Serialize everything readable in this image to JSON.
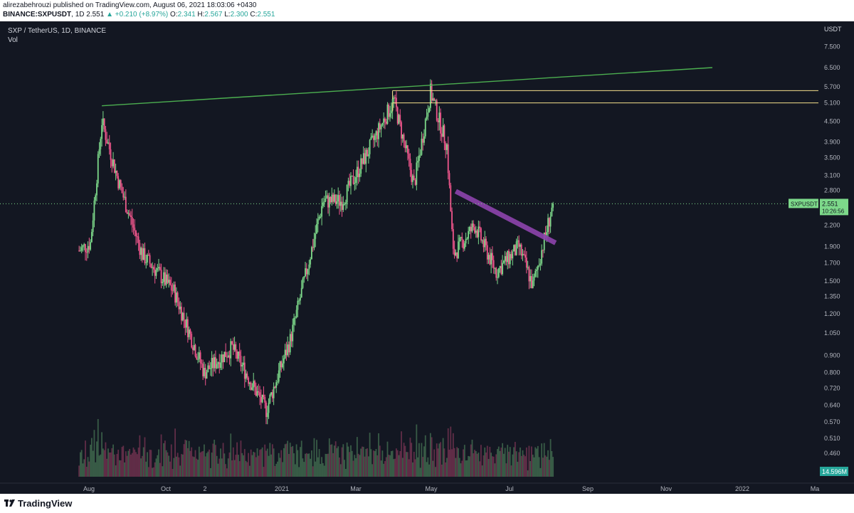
{
  "header": {
    "publisher_line": "alirezabehrouzi published on TradingView.com, August 06, 2021 18:03:06 +0430",
    "symbol": "BINANCE:SXPUSDT",
    "timeframe": "1D",
    "last": "2.551",
    "change": "▲ +0.210 (+8.97%)",
    "o_label": "O:",
    "o_value": "2.341",
    "h_label": "H:",
    "h_value": "2.567",
    "l_label": "L:",
    "l_value": "2.300",
    "c_label": "C:",
    "c_value": "2.551"
  },
  "legend": {
    "series": "SXP / TetherUS, 1D, BINANCE",
    "volume": "Vol"
  },
  "footer": {
    "brand": "TradingView"
  },
  "colors": {
    "background": "#131722",
    "bull": "#7dd98a",
    "bear": "#f0568c",
    "trendline": "#4caf50",
    "resistance": "#f5e08c",
    "descending_channel": "#8e44ad",
    "price_badge": "#7dd98a"
  },
  "chart_data": {
    "type": "candlestick",
    "symbol": "SXPUSDT",
    "currency_label": "USDT",
    "y_scale": "log",
    "y_ticks": [
      "7.500",
      "6.500",
      "5.700",
      "5.100",
      "4.500",
      "3.900",
      "3.500",
      "3.100",
      "2.800",
      "2.551",
      "2.200",
      "1.900",
      "1.700",
      "1.500",
      "1.350",
      "1.200",
      "1.050",
      "0.900",
      "0.800",
      "0.720",
      "0.640",
      "0.570",
      "0.510",
      "0.460"
    ],
    "x_ticks": [
      "Aug",
      "Oct",
      "2",
      "2021",
      "Mar",
      "May",
      "Jul",
      "Sep",
      "Nov",
      "2022",
      "Ma"
    ],
    "last_price_label": "SXPUSDT",
    "last_price": "2.551",
    "countdown": "10:26:56",
    "volume_label": "14.596M",
    "anchors": [
      {
        "date": "2020-07-27",
        "price": 1.85
      },
      {
        "date": "2020-08-05",
        "price": 1.95
      },
      {
        "date": "2020-08-14",
        "price": 4.5
      },
      {
        "date": "2020-08-28",
        "price": 2.9
      },
      {
        "date": "2020-09-15",
        "price": 1.8
      },
      {
        "date": "2020-10-10",
        "price": 1.4
      },
      {
        "date": "2020-11-03",
        "price": 0.8
      },
      {
        "date": "2020-11-25",
        "price": 0.95
      },
      {
        "date": "2020-12-22",
        "price": 0.62
      },
      {
        "date": "2021-01-10",
        "price": 1.0
      },
      {
        "date": "2021-02-05",
        "price": 2.6
      },
      {
        "date": "2021-02-20",
        "price": 2.6
      },
      {
        "date": "2021-03-10",
        "price": 3.5
      },
      {
        "date": "2021-04-02",
        "price": 5.2
      },
      {
        "date": "2021-04-18",
        "price": 2.9
      },
      {
        "date": "2021-05-01",
        "price": 5.5
      },
      {
        "date": "2021-05-14",
        "price": 3.8
      },
      {
        "date": "2021-05-19",
        "price": 1.8
      },
      {
        "date": "2021-06-05",
        "price": 2.2
      },
      {
        "date": "2021-06-22",
        "price": 1.6
      },
      {
        "date": "2021-07-10",
        "price": 1.9
      },
      {
        "date": "2021-07-21",
        "price": 1.45
      },
      {
        "date": "2021-08-06",
        "price": 2.551
      }
    ],
    "drawings": [
      {
        "type": "trendline",
        "from": {
          "date": "2020-08-14",
          "price": 5.0
        },
        "to": {
          "date": "2021-12-10",
          "price": 6.5
        }
      },
      {
        "type": "horizontal_ray",
        "from_date": "2021-04-01",
        "price": 5.55
      },
      {
        "type": "horizontal_ray",
        "from_date": "2021-04-01",
        "price": 5.1
      },
      {
        "type": "channel",
        "from": {
          "date": "2021-05-21",
          "price": 2.78
        },
        "to": {
          "date": "2021-08-08",
          "price": 1.95
        }
      }
    ]
  }
}
